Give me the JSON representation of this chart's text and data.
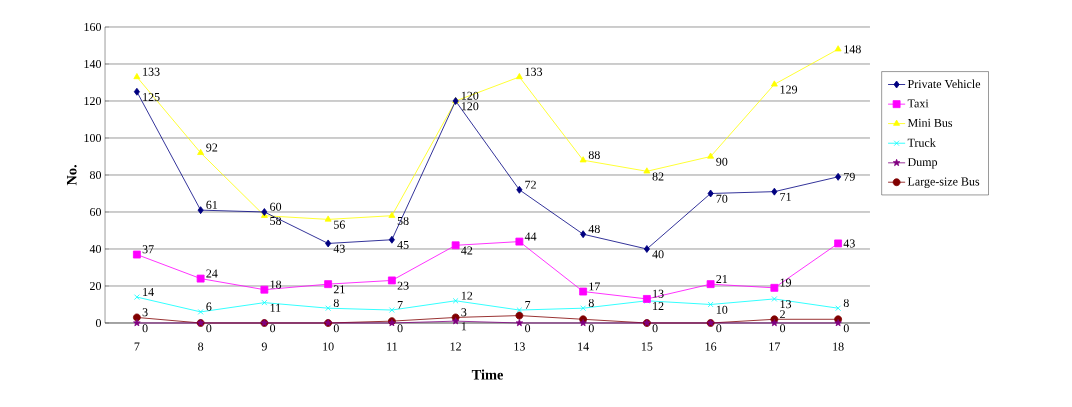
{
  "chart_data": {
    "type": "line",
    "xlabel": "Time",
    "ylabel": "No.",
    "categories": [
      "7",
      "8",
      "9",
      "10",
      "11",
      "12",
      "13",
      "14",
      "15",
      "16",
      "17",
      "18"
    ],
    "series": [
      {
        "name": "Private Vehicle",
        "color": "#000080",
        "marker": "diamond",
        "values": [
          125,
          61,
          60,
          43,
          45,
          120,
          72,
          48,
          40,
          70,
          71,
          79
        ]
      },
      {
        "name": "Taxi",
        "color": "#ff00ff",
        "marker": "square",
        "values": [
          37,
          24,
          18,
          21,
          23,
          42,
          44,
          17,
          13,
          21,
          19,
          43
        ]
      },
      {
        "name": "Mini Bus",
        "color": "#ffff00",
        "marker": "triangle",
        "values": [
          133,
          92,
          58,
          56,
          58,
          120,
          133,
          88,
          82,
          90,
          129,
          148
        ]
      },
      {
        "name": "Truck",
        "color": "#00ffff",
        "marker": "cross",
        "values": [
          14,
          6,
          11,
          8,
          7,
          12,
          7,
          8,
          12,
          10,
          13,
          8
        ]
      },
      {
        "name": "Dump",
        "color": "#800080",
        "marker": "star",
        "values": [
          0,
          0,
          0,
          0,
          0,
          1,
          0,
          0,
          0,
          0,
          0,
          0
        ]
      },
      {
        "name": "Large-size Bus",
        "color": "#800000",
        "marker": "circle",
        "values": [
          3,
          0,
          0,
          0,
          1,
          3,
          4,
          2,
          0,
          0,
          2,
          2
        ],
        "value_labels": [
          "3",
          null,
          null,
          null,
          null,
          "3",
          null,
          null,
          null,
          null,
          "2",
          null
        ]
      }
    ],
    "ylim": [
      0,
      160
    ],
    "yticks": [
      0,
      20,
      40,
      60,
      80,
      100,
      120,
      140,
      160
    ],
    "grid": "y",
    "legend": "right",
    "data_labels": true,
    "line_style": "solid"
  }
}
